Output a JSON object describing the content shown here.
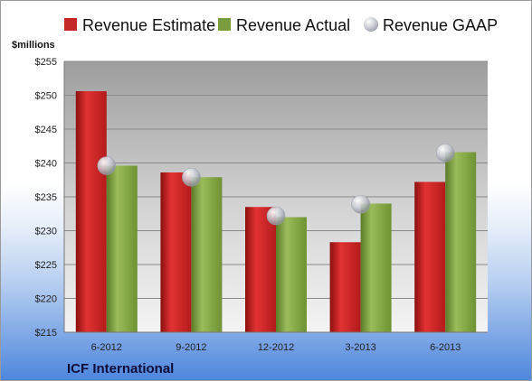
{
  "chart_data": {
    "type": "bar",
    "ylabel": "$millions",
    "company": "ICF International",
    "categories": [
      "6-2012",
      "9-2012",
      "12-2012",
      "3-2013",
      "6-2013"
    ],
    "ylim": [
      215,
      255
    ],
    "ytick_labels": [
      "$255",
      "$250",
      "$245",
      "$240",
      "$235",
      "$230",
      "$225",
      "$220",
      "$215"
    ],
    "grid": true,
    "legend_position": "top",
    "series": [
      {
        "name": "Revenue Estimate",
        "type": "bar",
        "color": "#c62828",
        "values": [
          250.6,
          238.6,
          233.5,
          228.3,
          237.2
        ]
      },
      {
        "name": "Revenue Actual",
        "type": "bar",
        "color": "#7a9c3c",
        "values": [
          239.6,
          237.9,
          232.0,
          234.0,
          241.6
        ]
      },
      {
        "name": "Revenue GAAP",
        "type": "scatter",
        "color": "#c8cbd3",
        "values": [
          239.6,
          237.9,
          232.2,
          233.9,
          241.5
        ]
      }
    ]
  }
}
